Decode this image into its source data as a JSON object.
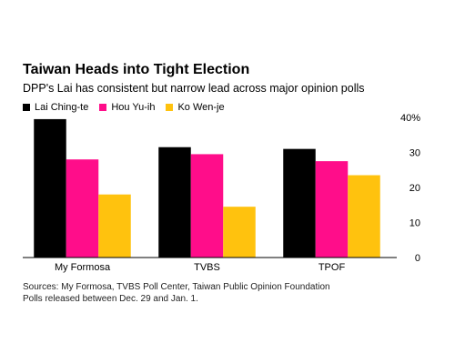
{
  "chart_data": {
    "type": "bar",
    "title": "Taiwan Heads into Tight Election",
    "subtitle": "DPP's Lai has consistent but narrow lead across major opinion polls",
    "categories": [
      "My Formosa",
      "TVBS",
      "TPOF"
    ],
    "series": [
      {
        "name": "Lai Ching-te",
        "color": "#000000",
        "values": [
          39.5,
          31.5,
          31
        ]
      },
      {
        "name": "Hou Yu-ih",
        "color": "#ff0d8a",
        "values": [
          28,
          29.5,
          27.5
        ]
      },
      {
        "name": "Ko Wen-je",
        "color": "#ffc20e",
        "values": [
          18,
          14.5,
          23.5
        ]
      }
    ],
    "ylim": [
      0,
      40
    ],
    "yticks": [
      "40%",
      "30",
      "20",
      "10",
      "0"
    ],
    "ytick_values": [
      40,
      30,
      20,
      10,
      0
    ],
    "legend_position": "top-left",
    "grid": false
  },
  "source": {
    "line1": "Sources: My Formosa, TVBS Poll Center, Taiwan Public Opinion Foundation",
    "line2": "Polls released between Dec. 29 and Jan. 1."
  }
}
